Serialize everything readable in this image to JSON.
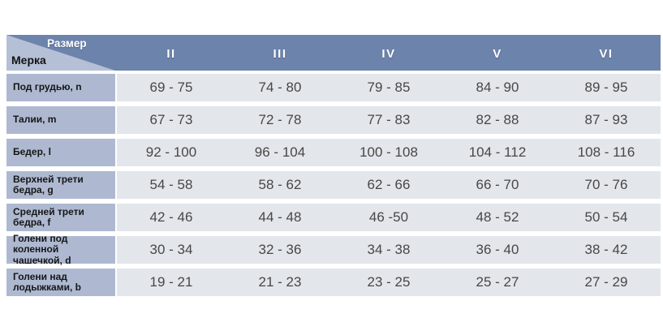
{
  "chart_data": {
    "type": "table",
    "corner_labels": {
      "top_right": "Размер",
      "bottom_left": "Мерка"
    },
    "columns": [
      "II",
      "III",
      "IV",
      "V",
      "VI"
    ],
    "rows": [
      {
        "label": "Под грудью, n",
        "values": [
          "69 - 75",
          "74 - 80",
          "79 - 85",
          "84 - 90",
          "89 - 95"
        ]
      },
      {
        "label": "Талии, m",
        "values": [
          "67 - 73",
          "72 - 78",
          "77 - 83",
          "82 - 88",
          "87 - 93"
        ]
      },
      {
        "label": "Бедер, l",
        "values": [
          "92 - 100",
          "96 - 104",
          "100 - 108",
          "104 - 112",
          "108 - 116"
        ]
      },
      {
        "label": "Верхней трети бедра, g",
        "values": [
          "54 - 58",
          "58 - 62",
          "62 - 66",
          "66 - 70",
          "70 - 76"
        ]
      },
      {
        "label": "Средней трети бедра, f",
        "values": [
          "42 - 46",
          "44 - 48",
          "46 -50",
          "48 - 52",
          "50 - 54"
        ]
      },
      {
        "label": "Голени под коленной чашечкой, d",
        "values": [
          "30 - 34",
          "32 - 36",
          "34 - 38",
          "36 - 40",
          "38 - 42"
        ]
      },
      {
        "label": "Голени над лодыжками, b",
        "values": [
          "19 - 21",
          "21 - 23",
          "23 - 25",
          "25 - 27",
          "27 - 29"
        ]
      }
    ],
    "colors": {
      "header_bg": "#6c83ac",
      "corner_light_bg": "#b5c0d6",
      "row_label_bg": "#aeb9d1",
      "cell_bg": "#e3e6ea",
      "header_text": "#ffffff",
      "label_text": "#161616",
      "value_text": "#474747"
    }
  }
}
